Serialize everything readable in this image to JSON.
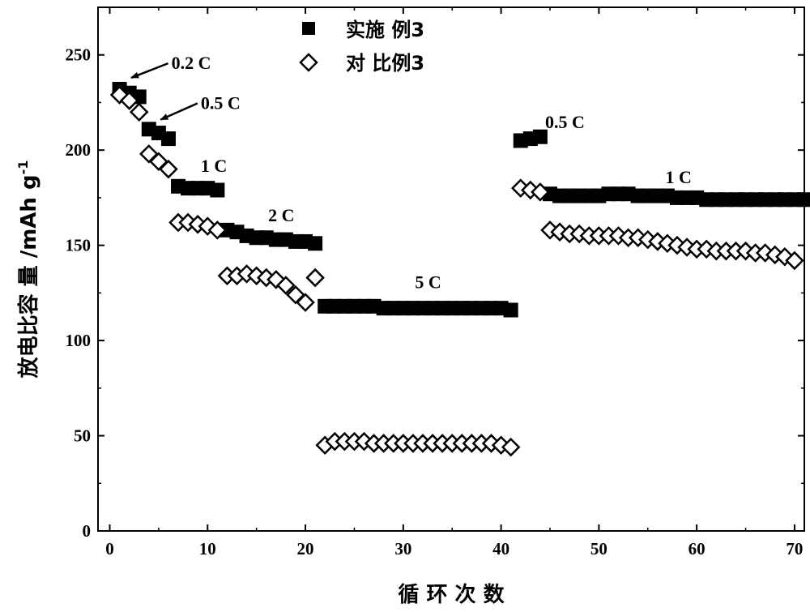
{
  "chart_data": {
    "type": "scatter",
    "xlabel": "循 环 次 数",
    "ylabel": "放电比容 量 /mAh g",
    "ylabel_superscript": "-1",
    "xlim": [
      -1.2,
      71
    ],
    "ylim": [
      0,
      275
    ],
    "xticks": [
      0,
      10,
      20,
      30,
      40,
      50,
      60,
      70
    ],
    "yticks": [
      0,
      50,
      100,
      150,
      200,
      250
    ],
    "legend_position": "top-center",
    "grid": false,
    "series": [
      {
        "name": "实施 例3",
        "marker": "filled-square",
        "color": "#000000",
        "x": [
          1,
          2,
          3,
          4,
          5,
          6,
          7,
          8,
          9,
          10,
          11,
          12,
          13,
          14,
          15,
          16,
          17,
          18,
          19,
          20,
          21,
          22,
          23,
          24,
          25,
          26,
          27,
          28,
          29,
          30,
          31,
          32,
          33,
          34,
          35,
          36,
          37,
          38,
          39,
          40,
          41,
          42,
          43,
          44,
          45,
          46,
          47,
          48,
          49,
          50,
          51,
          52,
          53,
          54,
          55,
          56,
          57,
          58,
          59,
          60,
          61,
          62,
          63,
          64,
          65,
          66,
          67,
          68,
          69,
          70,
          71
        ],
        "y": [
          232,
          230,
          228,
          211,
          209,
          206,
          181,
          180,
          180,
          180,
          179,
          158,
          157,
          155,
          154,
          154,
          153,
          153,
          152,
          152,
          151,
          118,
          118,
          118,
          118,
          118,
          118,
          117,
          117,
          117,
          117,
          117,
          117,
          117,
          117,
          117,
          117,
          117,
          117,
          117,
          116,
          205,
          206,
          207,
          177,
          176,
          176,
          176,
          176,
          176,
          177,
          177,
          177,
          176,
          176,
          176,
          176,
          175,
          175,
          175,
          174,
          174,
          174,
          174,
          174,
          174,
          174,
          174,
          174,
          174,
          174
        ]
      },
      {
        "name": "对 比例3",
        "marker": "open-diamond",
        "color": "#000000",
        "x": [
          1,
          2,
          3,
          4,
          5,
          6,
          7,
          8,
          9,
          10,
          11,
          12,
          13,
          14,
          15,
          16,
          17,
          18,
          19,
          20,
          21,
          22,
          23,
          24,
          25,
          26,
          27,
          28,
          29,
          30,
          31,
          32,
          33,
          34,
          35,
          36,
          37,
          38,
          39,
          40,
          41,
          42,
          43,
          44,
          45,
          46,
          47,
          48,
          49,
          50,
          51,
          52,
          53,
          54,
          55,
          56,
          57,
          58,
          59,
          60,
          61,
          62,
          63,
          64,
          65,
          66,
          67,
          68,
          69,
          70
        ],
        "y": [
          229,
          226,
          220,
          198,
          194,
          190,
          162,
          162,
          161,
          160,
          158,
          134,
          134,
          135,
          134,
          133,
          132,
          129,
          124,
          120,
          133,
          45,
          47,
          47,
          47,
          47,
          46,
          46,
          46,
          46,
          46,
          46,
          46,
          46,
          46,
          46,
          46,
          46,
          46,
          45,
          44,
          180,
          179,
          178,
          158,
          157,
          156,
          156,
          155,
          155,
          155,
          155,
          154,
          154,
          153,
          152,
          151,
          150,
          149,
          148,
          148,
          147,
          147,
          147,
          147,
          146,
          146,
          145,
          144,
          142
        ]
      }
    ],
    "annotations": [
      {
        "text": "0.2 C",
        "x": 6.3,
        "y": 246,
        "arrow_to": [
          2.2,
          238
        ]
      },
      {
        "text": "0.5 C",
        "x": 9.3,
        "y": 225,
        "arrow_to": [
          5.2,
          216
        ]
      },
      {
        "text": "1 C",
        "x": 9.3,
        "y": 192
      },
      {
        "text": "2 C",
        "x": 16.2,
        "y": 166
      },
      {
        "text": "5 C",
        "x": 31.2,
        "y": 131
      },
      {
        "text": "0.5 C",
        "x": 44.5,
        "y": 215
      },
      {
        "text": "1 C",
        "x": 56.8,
        "y": 186
      }
    ]
  }
}
